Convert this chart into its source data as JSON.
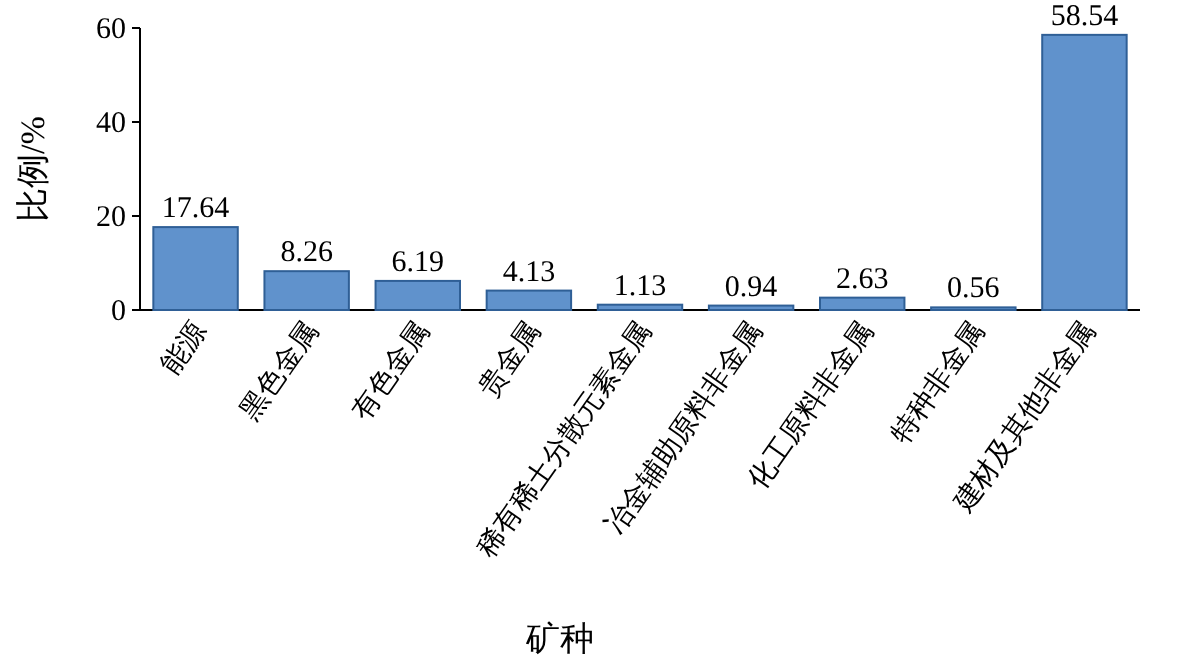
{
  "chart_data": {
    "type": "bar",
    "ylabel": "比例/%",
    "xlabel": "矿种",
    "categories": [
      "能源",
      "黑色金属",
      "有色金属",
      "贵金属",
      "稀有稀土分散元素金属",
      "冶金辅助原料非金属",
      "化工原料非金属",
      "特种非金属",
      "建材及其他非金属"
    ],
    "values": [
      17.64,
      8.26,
      6.19,
      4.13,
      1.13,
      0.94,
      2.63,
      0.56,
      58.54
    ],
    "color": "#4f86c6",
    "ylim": [
      0,
      60
    ],
    "yticks": [
      0,
      20,
      40,
      60
    ],
    "data_labels": true
  }
}
